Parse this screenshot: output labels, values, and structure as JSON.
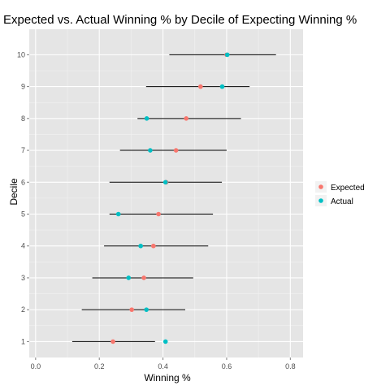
{
  "chart_data": {
    "type": "scatter",
    "title": "Expected vs. Actual Winning % by Decile of Expecting Winning %",
    "xlabel": "Winning %",
    "ylabel": "Decile",
    "xlim": [
      -0.02,
      0.84
    ],
    "ylim": [
      0.5,
      10.8
    ],
    "x_ticks": [
      "0.0",
      "0.2",
      "0.4",
      "0.6",
      "0.8"
    ],
    "y_ticks": [
      "1",
      "2",
      "3",
      "4",
      "5",
      "6",
      "7",
      "8",
      "9",
      "10"
    ],
    "grid": true,
    "legend_position": "right",
    "deciles": [
      1,
      2,
      3,
      4,
      5,
      6,
      7,
      8,
      9,
      10
    ],
    "ranges": [
      {
        "low": 0.115,
        "high": 0.375
      },
      {
        "low": 0.145,
        "high": 0.47
      },
      {
        "low": 0.178,
        "high": 0.495
      },
      {
        "low": 0.215,
        "high": 0.542
      },
      {
        "low": 0.232,
        "high": 0.557
      },
      {
        "low": 0.232,
        "high": 0.585
      },
      {
        "low": 0.265,
        "high": 0.6
      },
      {
        "low": 0.32,
        "high": 0.645
      },
      {
        "low": 0.347,
        "high": 0.672
      },
      {
        "low": 0.42,
        "high": 0.755
      }
    ],
    "series": [
      {
        "name": "Expected",
        "color": "#f8766d",
        "values": [
          0.243,
          0.302,
          0.34,
          0.37,
          0.386,
          0.41,
          0.441,
          0.473,
          0.518,
          0.6
        ]
      },
      {
        "name": "Actual",
        "color": "#00bfc4",
        "values": [
          0.408,
          0.348,
          0.292,
          0.33,
          0.26,
          0.408,
          0.36,
          0.349,
          0.586,
          0.602
        ]
      }
    ]
  }
}
